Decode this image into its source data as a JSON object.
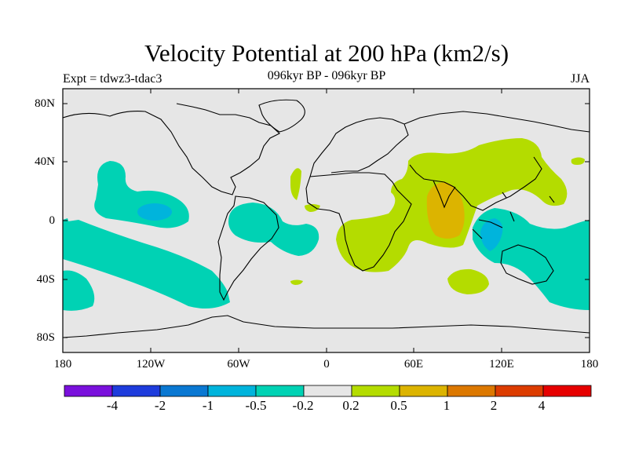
{
  "title": "Velocity Potential at 200 hPa (km2/s)",
  "left_label": "Expt = tdwz3-tdac3",
  "center_label": "096kyr BP - 096kyr BP",
  "right_label": "JJA",
  "lat_ticks": [
    "80N",
    "40N",
    "0",
    "40S",
    "80S"
  ],
  "lon_ticks": [
    "180",
    "120W",
    "60W",
    "0",
    "60E",
    "120E",
    "180"
  ],
  "colorbar": {
    "labels": [
      "-4",
      "-2",
      "-1",
      "-0.5",
      "-0.2",
      "0.2",
      "0.5",
      "1",
      "2",
      "4"
    ],
    "colors": [
      "#7a10dc",
      "#1e3cdc",
      "#0a78d2",
      "#00b4dc",
      "#00d2b4",
      "#e6e6e6",
      "#b4dc00",
      "#dcb400",
      "#dc7800",
      "#dc3c00",
      "#e60000"
    ]
  },
  "map_colors": {
    "neutral": "#e6e6e6",
    "neg_weak": "#00d2b4",
    "neg_mid": "#00b4dc",
    "pos_weak": "#b4dc00",
    "pos_mid": "#dcb400"
  }
}
